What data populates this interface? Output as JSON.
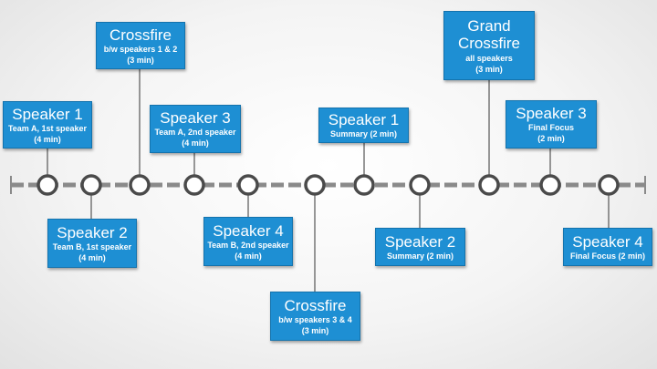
{
  "events": [
    {
      "id": "a1",
      "title": "Speaker 1",
      "lines": [
        "Team A, 1st speaker",
        "(4 min)"
      ]
    },
    {
      "id": "b1",
      "title": "Speaker 2",
      "lines": [
        "Team B, 1st speaker",
        "(4 min)"
      ]
    },
    {
      "id": "cf1",
      "title": "Crossfire",
      "lines": [
        "b/w speakers 1 & 2",
        "(3 min)"
      ]
    },
    {
      "id": "a2",
      "title": "Speaker 3",
      "lines": [
        "Team A, 2nd speaker",
        "(4 min)"
      ]
    },
    {
      "id": "b2",
      "title": "Speaker 4",
      "lines": [
        "Team B, 2nd speaker",
        "(4 min)"
      ]
    },
    {
      "id": "cf2",
      "title": "Crossfire",
      "lines": [
        "b/w speakers 3 & 4",
        "(3 min)"
      ]
    },
    {
      "id": "s1",
      "title": "Speaker 1",
      "lines": [
        "Summary (2 min)"
      ]
    },
    {
      "id": "s2",
      "title": "Speaker 2",
      "lines": [
        "Summary (2 min)"
      ]
    },
    {
      "id": "gcf",
      "title": "Grand Crossfire",
      "lines": [
        "all speakers",
        "(3 min)"
      ]
    },
    {
      "id": "ff1",
      "title": "Speaker 3",
      "lines": [
        "Final Focus",
        "(2 min)"
      ]
    },
    {
      "id": "ff2",
      "title": "Speaker 4",
      "lines": [
        "Final Focus (2 min)"
      ]
    }
  ],
  "colors": {
    "box": "#1e8fd3",
    "line": "#8a8a8a",
    "node_fill": "#ffffff",
    "node_stroke": "#4a4a4a"
  }
}
